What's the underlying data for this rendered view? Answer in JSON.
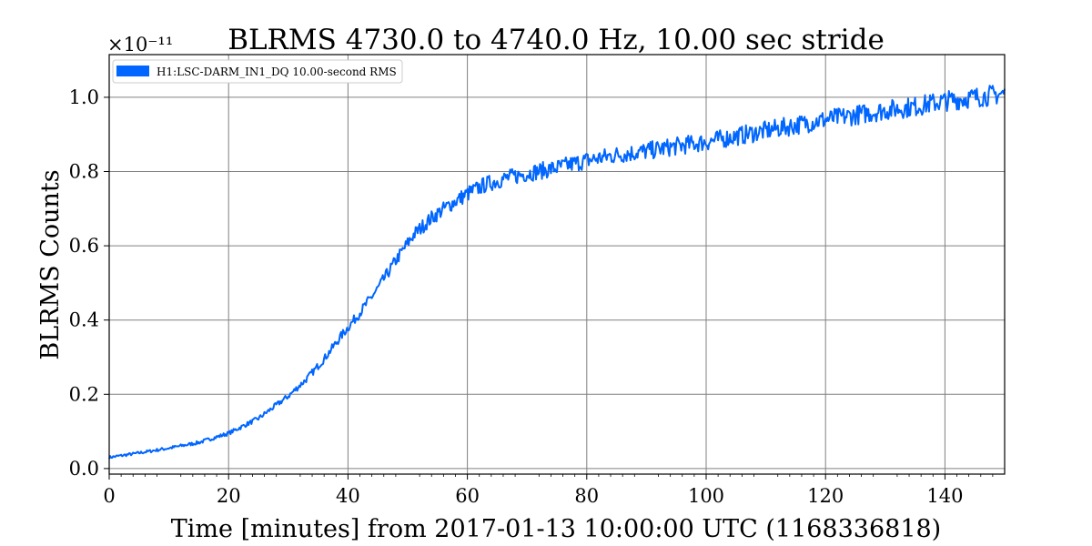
{
  "chart_data": {
    "type": "line",
    "title": "BLRMS 4730.0 to 4740.0 Hz, 10.00 sec stride",
    "xlabel": "Time [minutes] from 2017-01-13 10:00:00 UTC (1168336818)",
    "ylabel": "BLRMS Counts",
    "y_offset_label": "×10⁻¹¹",
    "xlim": [
      0,
      150
    ],
    "ylim": [
      -0.015,
      1.115
    ],
    "x_ticks": [
      0,
      20,
      40,
      60,
      80,
      100,
      120,
      140
    ],
    "x_tick_labels": [
      "0",
      "20",
      "40",
      "60",
      "80",
      "100",
      "120",
      "140"
    ],
    "y_ticks": [
      0.0,
      0.2,
      0.4,
      0.6,
      0.8,
      1.0
    ],
    "y_tick_labels": [
      "0.0",
      "0.2",
      "0.4",
      "0.6",
      "0.8",
      "1.0"
    ],
    "grid": true,
    "legend_position": "top-left",
    "series": [
      {
        "name": "H1:LSC-DARM_IN1_DQ 10.00-second RMS",
        "color": "#0066ff",
        "x": [
          0,
          5,
          10,
          15,
          20,
          25,
          30,
          33,
          36,
          39,
          42,
          45,
          48,
          51,
          54,
          57,
          60,
          63,
          66,
          70,
          75,
          80,
          85,
          90,
          95,
          100,
          105,
          110,
          115,
          120,
          125,
          130,
          135,
          140,
          145,
          150
        ],
        "y": [
          0.03,
          0.042,
          0.055,
          0.07,
          0.095,
          0.135,
          0.195,
          0.24,
          0.295,
          0.36,
          0.42,
          0.485,
          0.56,
          0.63,
          0.675,
          0.71,
          0.74,
          0.765,
          0.78,
          0.795,
          0.81,
          0.83,
          0.845,
          0.855,
          0.868,
          0.88,
          0.895,
          0.91,
          0.925,
          0.94,
          0.952,
          0.965,
          0.975,
          0.99,
          1.0,
          1.01
        ]
      }
    ]
  }
}
